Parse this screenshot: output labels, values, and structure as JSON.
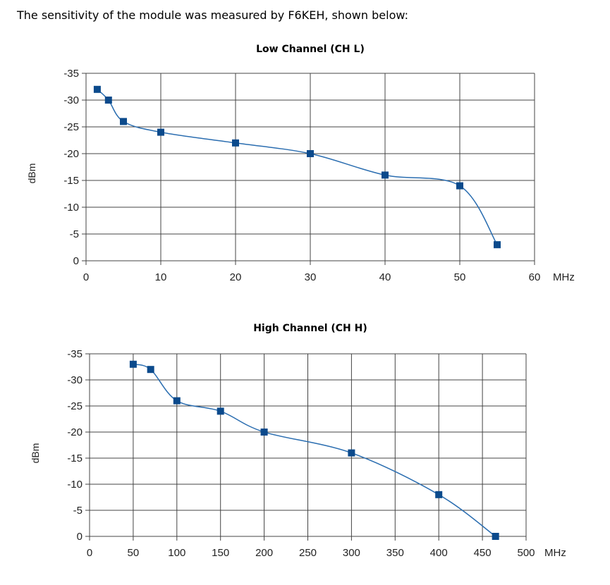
{
  "intro_text": "The sensitivity of the module was measured by F6KEH, shown below:",
  "colors": {
    "series": "#2a6db0",
    "marker": "#0b4a8c",
    "grid": "#444444"
  },
  "chart_data": [
    {
      "type": "line",
      "title": "Low Channel (CH L)",
      "xlabel": "MHz",
      "ylabel": "dBm",
      "xlim": [
        0,
        60
      ],
      "ylim": [
        0,
        -35
      ],
      "xticks": [
        0,
        10,
        20,
        30,
        40,
        50,
        60
      ],
      "xtick_labels": [
        "0",
        "10",
        "20",
        "30",
        "40",
        "50",
        "60"
      ],
      "yticks": [
        0,
        -5,
        -10,
        -15,
        -20,
        -25,
        -30,
        -35
      ],
      "ytick_labels": [
        "0",
        "-5",
        "-10",
        "-15",
        "-20",
        "-25",
        "-30",
        "-35"
      ],
      "grid": true,
      "series": [
        {
          "x": [
            1.5,
            3,
            5,
            10,
            20,
            30,
            40,
            50,
            55
          ],
          "y": [
            -32,
            -30,
            -26,
            -24,
            -22,
            -20,
            -16,
            -14,
            -3
          ]
        }
      ]
    },
    {
      "type": "line",
      "title": "High Channel (CH H)",
      "xlabel": "MHz",
      "ylabel": "dBm",
      "xlim": [
        0,
        500
      ],
      "ylim": [
        0,
        -35
      ],
      "xticks": [
        0,
        50,
        100,
        150,
        200,
        250,
        300,
        350,
        400,
        450,
        500
      ],
      "xtick_labels": [
        "0",
        "50",
        "100",
        "150",
        "200",
        "250",
        "300",
        "350",
        "400",
        "450",
        "500"
      ],
      "yticks": [
        0,
        -5,
        -10,
        -15,
        -20,
        -25,
        -30,
        -35
      ],
      "ytick_labels": [
        "0",
        "-5",
        "-10",
        "-15",
        "-20",
        "-25",
        "-30",
        "-35"
      ],
      "grid": true,
      "series": [
        {
          "x": [
            50,
            70,
            100,
            150,
            200,
            300,
            400,
            465
          ],
          "y": [
            -33,
            -32,
            -26,
            -24,
            -20,
            -16,
            -8,
            0
          ]
        }
      ]
    }
  ]
}
